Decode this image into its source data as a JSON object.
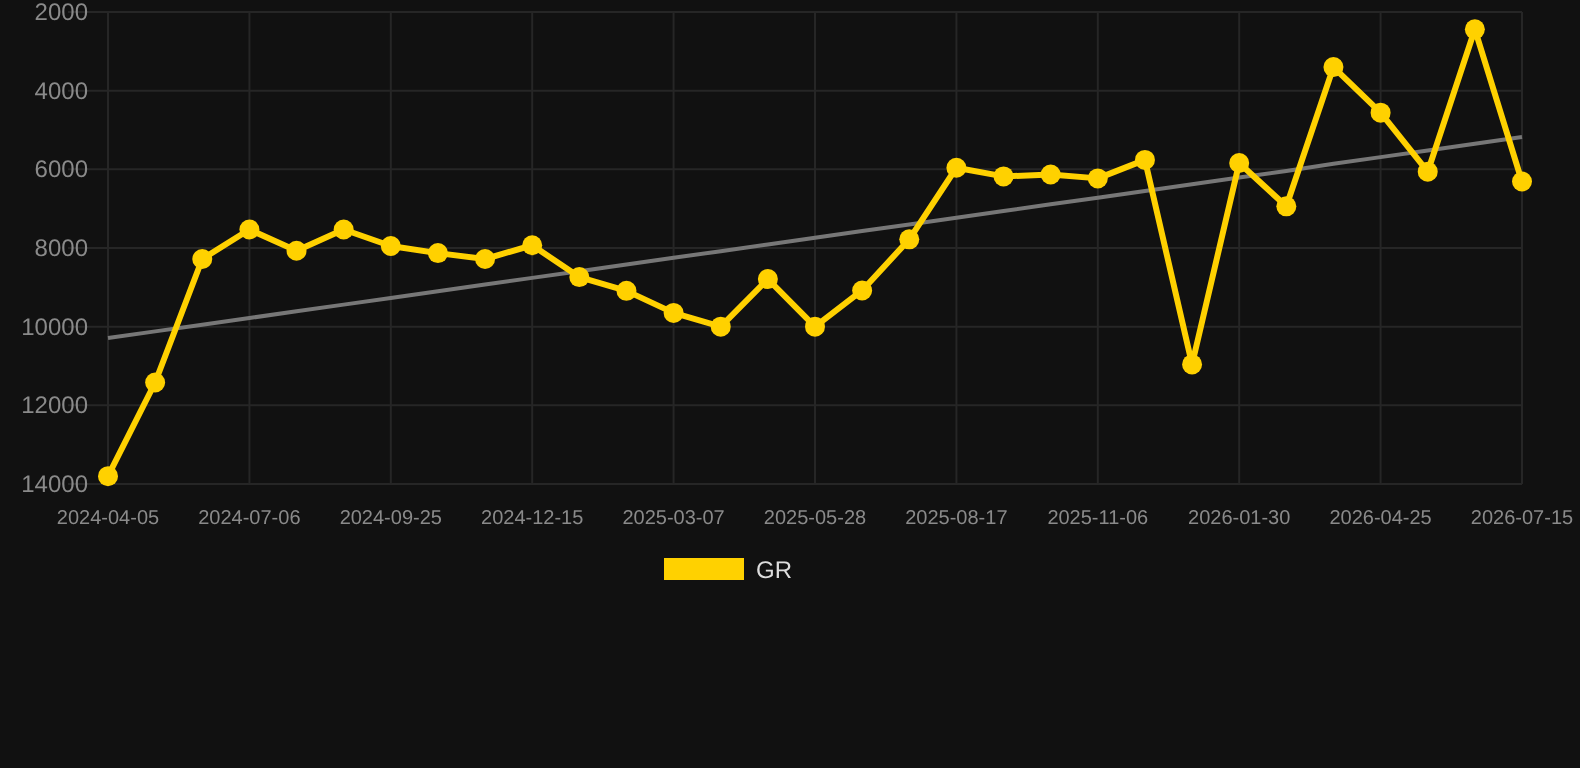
{
  "chart_data": {
    "type": "line",
    "categories": [
      "2024-04-05",
      null,
      null,
      "2024-07-06",
      null,
      null,
      "2024-09-25",
      null,
      null,
      "2024-12-15",
      null,
      null,
      "2025-03-07",
      null,
      null,
      "2025-05-28",
      null,
      null,
      "2025-08-17",
      null,
      null,
      "2025-11-06",
      null,
      null,
      "2026-01-30",
      null,
      null,
      "2026-04-25",
      null,
      null,
      "2026-07-15"
    ],
    "series": [
      {
        "name": "GR",
        "color": "#ffd100",
        "marker": "circle",
        "values": [
          13800,
          11420,
          8280,
          7530,
          8070,
          7530,
          7950,
          8130,
          8280,
          7930,
          8740,
          9090,
          9650,
          10000,
          8790,
          10000,
          9080,
          7780,
          5960,
          6180,
          6130,
          6230,
          5760,
          10960,
          5840,
          6940,
          3400,
          4560,
          6060,
          2440,
          6310
        ]
      },
      {
        "type": "line",
        "color": "#777777",
        "marker": "none",
        "values": [
          10290,
          10120,
          9950,
          9780,
          9610,
          9440,
          9270,
          9100,
          8930,
          8760,
          8590,
          8420,
          8250,
          8080,
          7910,
          7740,
          7570,
          7400,
          7230,
          7060,
          6890,
          6720,
          6550,
          6380,
          6210,
          6040,
          5860,
          5690,
          5520,
          5350,
          5180
        ]
      }
    ],
    "ylim": [
      14000,
      2000
    ],
    "yticks": [
      14000,
      12000,
      10000,
      8000,
      6000,
      4000,
      2000
    ],
    "grid": true,
    "legend": "bottom",
    "line_style": "solid"
  }
}
